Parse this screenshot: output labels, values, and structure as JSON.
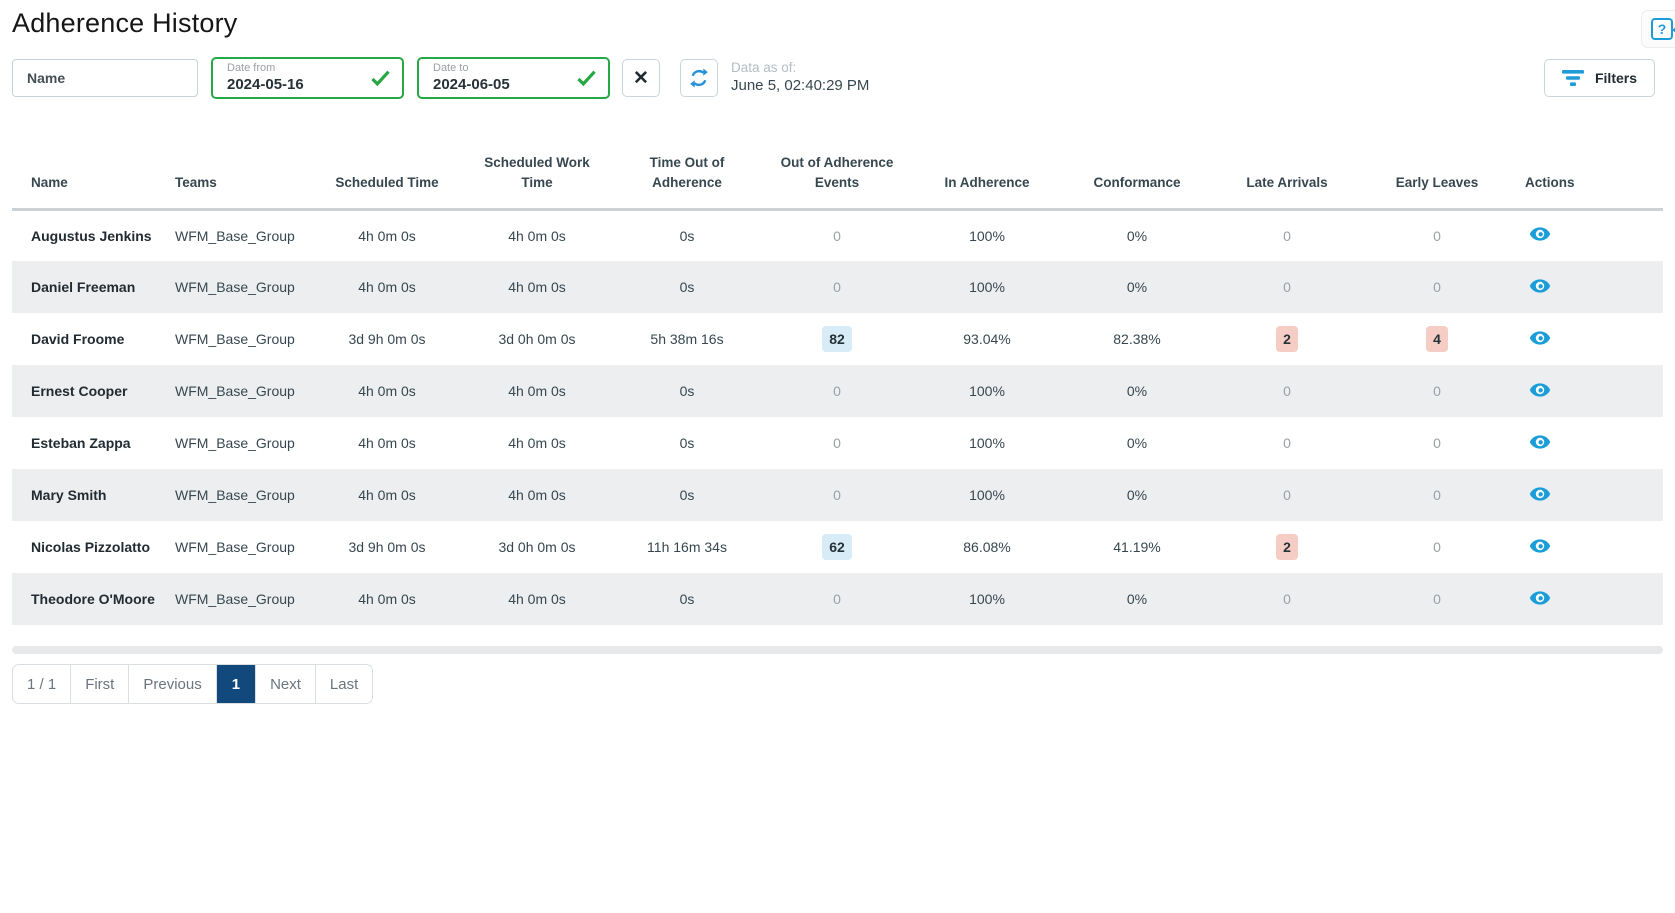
{
  "page": {
    "title": "Adherence History"
  },
  "help": {
    "glyph": "?"
  },
  "toolbar": {
    "name_filter": {
      "placeholder": "Name",
      "value": ""
    },
    "date_from": {
      "label": "Date from",
      "value": "2024-05-16"
    },
    "date_to": {
      "label": "Date to",
      "value": "2024-06-05"
    },
    "clear_glyph": "✕",
    "data_as_of": {
      "label": "Data as of:",
      "value": "June 5, 02:40:29 PM"
    },
    "filters_label": "Filters"
  },
  "icons": {
    "clear": "x-icon (✕)",
    "refresh": "refresh-icon (two circular arrows)",
    "check": "check-icon (✓)",
    "filter": "filter-icon (3 descending bars)",
    "eye": "eye-icon (view details)",
    "help": "question-bubble-icon"
  },
  "colors": {
    "accent_blue": "#1e9cd8",
    "valid_green": "#28a745",
    "badge_blue_bg": "#d8ecf8",
    "badge_red_bg": "#f5cdc5",
    "pagination_active_bg": "#11497c",
    "row_alt_bg": "#eceef0",
    "muted_text": "#9aa0a6"
  },
  "table": {
    "columns": [
      "Name",
      "Teams",
      "Scheduled Time",
      "Scheduled Work Time",
      "Time Out of Adherence",
      "Out of Adherence Events",
      "In Adherence",
      "Conformance",
      "Late Arrivals",
      "Early Leaves",
      "Actions"
    ],
    "rows": [
      {
        "name": "Augustus Jenkins",
        "team": "WFM_Base_Group",
        "scheduled_time": "4h 0m 0s",
        "scheduled_work_time": "4h 0m 0s",
        "time_out_of_adherence": "0s",
        "out_of_adherence_events": "0",
        "in_adherence": "100%",
        "conformance": "0%",
        "late_arrivals": "0",
        "early_leaves": "0"
      },
      {
        "name": "Daniel Freeman",
        "team": "WFM_Base_Group",
        "scheduled_time": "4h 0m 0s",
        "scheduled_work_time": "4h 0m 0s",
        "time_out_of_adherence": "0s",
        "out_of_adherence_events": "0",
        "in_adherence": "100%",
        "conformance": "0%",
        "late_arrivals": "0",
        "early_leaves": "0"
      },
      {
        "name": "David Froome",
        "team": "WFM_Base_Group",
        "scheduled_time": "3d 9h 0m 0s",
        "scheduled_work_time": "3d 0h 0m 0s",
        "time_out_of_adherence": "5h 38m 16s",
        "out_of_adherence_events": "82",
        "in_adherence": "93.04%",
        "conformance": "82.38%",
        "late_arrivals": "2",
        "early_leaves": "4"
      },
      {
        "name": "Ernest Cooper",
        "team": "WFM_Base_Group",
        "scheduled_time": "4h 0m 0s",
        "scheduled_work_time": "4h 0m 0s",
        "time_out_of_adherence": "0s",
        "out_of_adherence_events": "0",
        "in_adherence": "100%",
        "conformance": "0%",
        "late_arrivals": "0",
        "early_leaves": "0"
      },
      {
        "name": "Esteban Zappa",
        "team": "WFM_Base_Group",
        "scheduled_time": "4h 0m 0s",
        "scheduled_work_time": "4h 0m 0s",
        "time_out_of_adherence": "0s",
        "out_of_adherence_events": "0",
        "in_adherence": "100%",
        "conformance": "0%",
        "late_arrivals": "0",
        "early_leaves": "0"
      },
      {
        "name": "Mary Smith",
        "team": "WFM_Base_Group",
        "scheduled_time": "4h 0m 0s",
        "scheduled_work_time": "4h 0m 0s",
        "time_out_of_adherence": "0s",
        "out_of_adherence_events": "0",
        "in_adherence": "100%",
        "conformance": "0%",
        "late_arrivals": "0",
        "early_leaves": "0"
      },
      {
        "name": "Nicolas Pizzolatto",
        "team": "WFM_Base_Group",
        "scheduled_time": "3d 9h 0m 0s",
        "scheduled_work_time": "3d 0h 0m 0s",
        "time_out_of_adherence": "11h 16m 34s",
        "out_of_adherence_events": "62",
        "in_adherence": "86.08%",
        "conformance": "41.19%",
        "late_arrivals": "2",
        "early_leaves": "0"
      },
      {
        "name": "Theodore O'Moore",
        "team": "WFM_Base_Group",
        "scheduled_time": "4h 0m 0s",
        "scheduled_work_time": "4h 0m 0s",
        "time_out_of_adherence": "0s",
        "out_of_adherence_events": "0",
        "in_adherence": "100%",
        "conformance": "0%",
        "late_arrivals": "0",
        "early_leaves": "0"
      }
    ]
  },
  "pagination": {
    "summary": "1 / 1",
    "first_label": "First",
    "previous_label": "Previous",
    "current_page": "1",
    "next_label": "Next",
    "last_label": "Last"
  }
}
